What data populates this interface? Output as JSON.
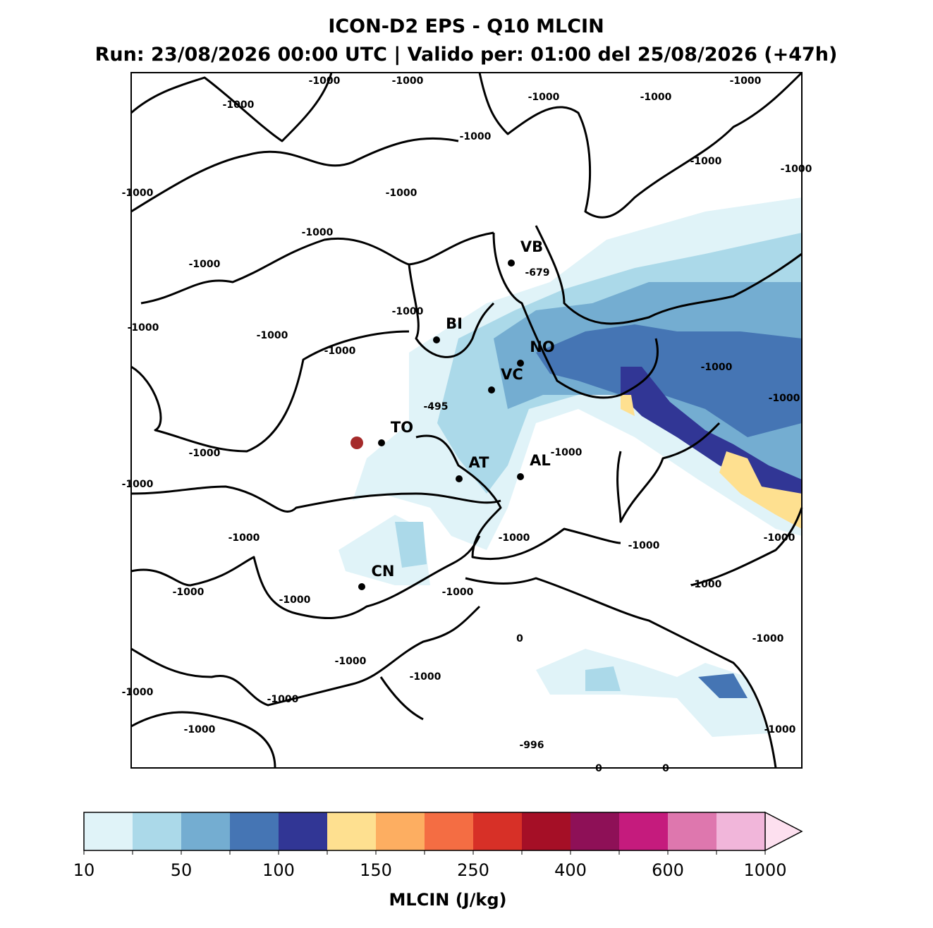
{
  "header": {
    "title": "ICON-D2 EPS - Q10 MLCIN",
    "subtitle": "Run: 23/08/2026 00:00 UTC | Valido per: 01:00 del 25/08/2026 (+47h)"
  },
  "map": {
    "cities": [
      "VB",
      "BI",
      "NO",
      "VC",
      "TO",
      "AT",
      "AL",
      "CN"
    ],
    "values": [
      -1000,
      -1000,
      -1000,
      -1000,
      -1000,
      -1000,
      -1000,
      -1000,
      -1000,
      -1000,
      -1000,
      -1000,
      -1000,
      -679,
      -1000,
      -1000,
      -1000,
      -1000,
      -1000,
      -495,
      -1000,
      -1000,
      -1000,
      -1000,
      -1000,
      -1000,
      -1000,
      -1000,
      -1000,
      -1000,
      -1000,
      -1000,
      0,
      -1000,
      -1000,
      -1000,
      -1000,
      -1000,
      -1000,
      -1000,
      -996,
      0,
      0
    ]
  },
  "colorbar": {
    "colors": [
      "#e0f3f8",
      "#abd9e9",
      "#74add1",
      "#4575b4",
      "#313695",
      "#fee090",
      "#fdae61",
      "#f46d43",
      "#d73027",
      "#a50f26",
      "#8e1057",
      "#c51b7d",
      "#de77ae",
      "#f1b6da",
      "#fde0ef"
    ],
    "ticks": [
      10,
      50,
      100,
      150,
      250,
      400,
      600,
      1000
    ],
    "label": "MLCIN (J/kg)"
  }
}
